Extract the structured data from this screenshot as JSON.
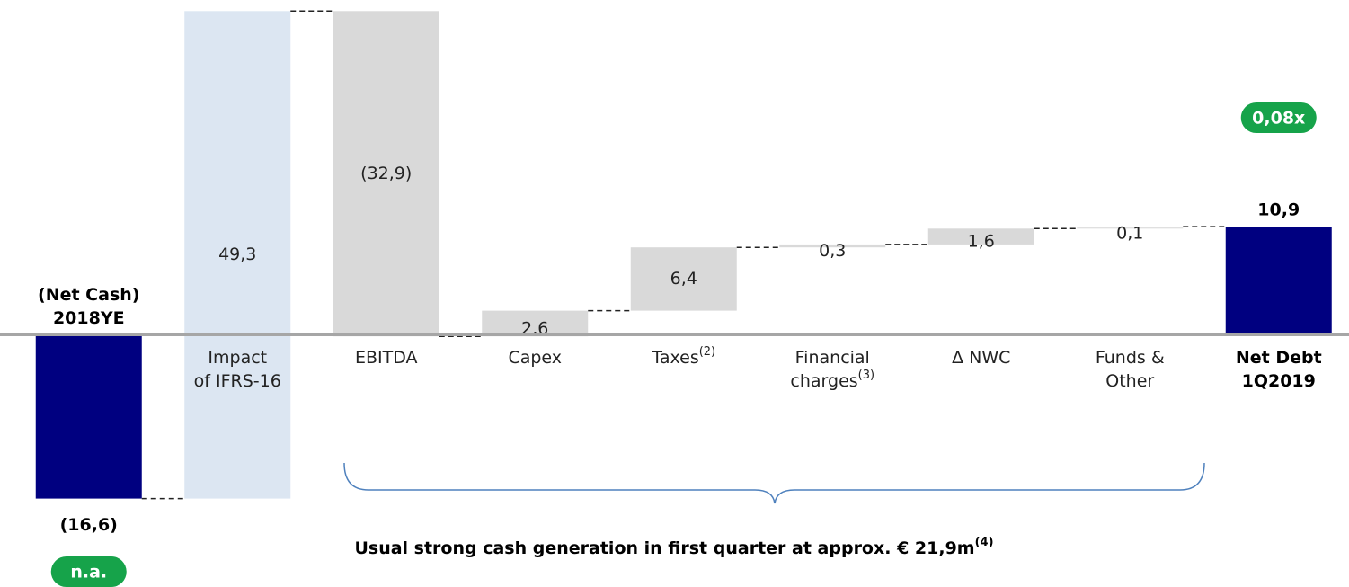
{
  "chart_data": {
    "type": "waterfall",
    "categories": [
      [
        "(Net Cash)",
        "2018YE"
      ],
      [
        "Impact",
        "of IFRS-16"
      ],
      [
        "EBITDA"
      ],
      [
        "Capex"
      ],
      [
        "Taxes"
      ],
      [
        "Financial",
        "charges"
      ],
      [
        "Δ NWC"
      ],
      [
        "Funds &",
        "Other"
      ],
      [
        "Net Debt",
        "1Q2019"
      ]
    ],
    "category_notes": [
      null,
      null,
      null,
      null,
      "(2)",
      "(3)",
      null,
      null,
      null
    ],
    "values": [
      -16.6,
      49.3,
      -32.9,
      2.6,
      6.4,
      0.3,
      1.6,
      0.1,
      10.9
    ],
    "value_labels": [
      "(16,6)",
      "49,3",
      "(32,9)",
      "2,6",
      "6,4",
      "0,3",
      "1,6",
      "0,1",
      "10,9"
    ],
    "colors": [
      "#000080",
      "#dce6f2",
      "#d9d9d9",
      "#d9d9d9",
      "#d9d9d9",
      "#d9d9d9",
      "#d9d9d9",
      "#d9d9d9",
      "#000080"
    ],
    "ylim": [
      -25,
      33
    ],
    "badges": [
      "n.a.",
      "0,08x"
    ],
    "annotation": {
      "text": "Usual strong cash generation in first quarter at approx. € 21,9m",
      "note": "(4)"
    }
  }
}
